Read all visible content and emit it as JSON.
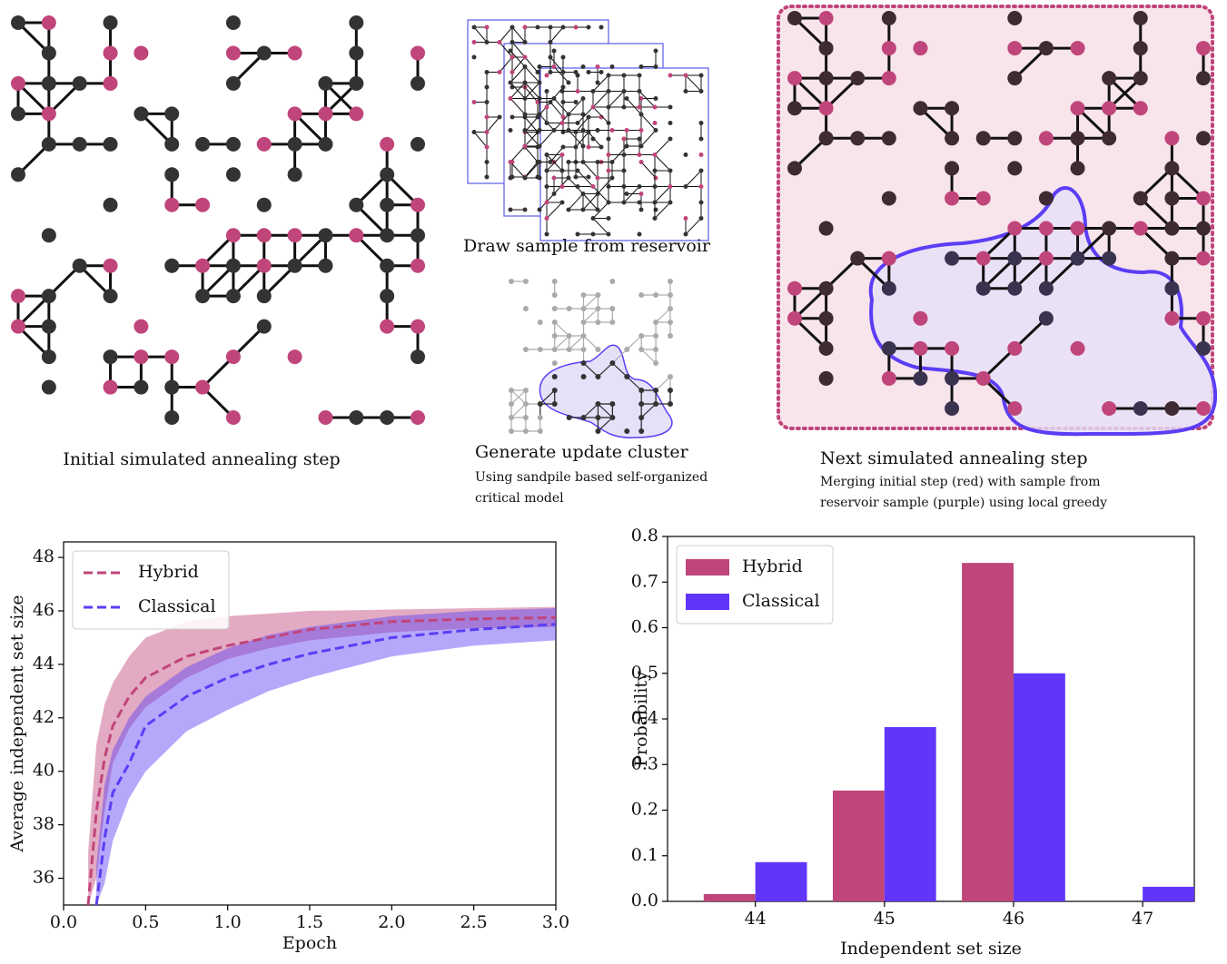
{
  "diagram": {
    "initial_caption": "Initial simulated annealing step",
    "reservoir_caption": "Draw sample from reservoir",
    "cluster_caption": "Generate update cluster",
    "cluster_note": [
      "Using sandpile based self-organized",
      "critical model"
    ],
    "next_caption": "Next simulated annealing step",
    "next_note": [
      "Merging initial step (red) with sample from",
      "reservoir sample (purple) using local greedy"
    ]
  },
  "chart_data": [
    {
      "type": "line",
      "xlabel": "Epoch",
      "ylabel": "Average independent set size",
      "x": [
        0.15,
        0.2,
        0.25,
        0.3,
        0.4,
        0.5,
        0.75,
        1.0,
        1.25,
        1.5,
        2.0,
        2.5,
        3.0
      ],
      "series": [
        {
          "name": "Hybrid",
          "color": "#c0457a",
          "values": [
            35,
            38.5,
            40.5,
            41.7,
            42.8,
            43.5,
            44.3,
            44.7,
            45.0,
            45.3,
            45.6,
            45.7,
            45.75
          ],
          "upper": [
            37,
            41,
            42.5,
            43.3,
            44.3,
            45,
            45.6,
            45.8,
            45.9,
            46,
            46.05,
            46.1,
            46.15
          ],
          "lower": [
            35,
            36,
            38.5,
            40.3,
            41.6,
            42.4,
            43.5,
            44.2,
            44.6,
            44.9,
            45.2,
            45.35,
            45.4
          ]
        },
        {
          "name": "Classical",
          "color": "#5b3df5",
          "values": [
            null,
            35,
            37.5,
            39.2,
            40.3,
            41.7,
            42.8,
            43.5,
            44.0,
            44.4,
            45.0,
            45.3,
            45.5
          ],
          "upper": [
            null,
            36.5,
            39.5,
            40.8,
            42,
            42.8,
            43.9,
            44.6,
            45.1,
            45.4,
            45.8,
            46.0,
            46.1
          ],
          "lower": [
            null,
            35,
            35.8,
            37.4,
            39,
            40,
            41.5,
            42.3,
            43,
            43.5,
            44.3,
            44.7,
            44.9
          ]
        }
      ],
      "xlim": [
        0,
        3
      ],
      "ylim": [
        35,
        48.58
      ],
      "xticks": [
        {
          "value": 0,
          "label": "0.0"
        },
        0.5,
        {
          "value": 1,
          "label": "1.0"
        },
        1.5,
        {
          "value": 2,
          "label": "2.0"
        },
        2.5,
        {
          "value": 3,
          "label": "3.0"
        }
      ],
      "yticks": [
        36,
        38,
        40,
        42,
        44,
        46,
        48
      ],
      "legend": "upper left",
      "line_style": "dashed"
    },
    {
      "type": "bar",
      "xlabel": "Independent set size",
      "ylabel": "Probability",
      "x": [
        44,
        45,
        46,
        47
      ],
      "series": [
        {
          "name": "Hybrid",
          "color": "#c0457a",
          "values": [
            0.016,
            0.243,
            0.742,
            0
          ]
        },
        {
          "name": "Classical",
          "color": "#6236fa",
          "values": [
            0.086,
            0.382,
            0.5,
            0.032
          ]
        }
      ],
      "xlim": [
        43.32,
        47.4
      ],
      "ylim": [
        0,
        0.8
      ],
      "xticks": [
        44,
        45,
        46,
        47
      ],
      "yticks": [
        {
          "value": 0,
          "label": "0.0"
        },
        0.1,
        0.2,
        0.3,
        0.4,
        0.5,
        0.6,
        0.7,
        0.8
      ],
      "legend": "upper left"
    }
  ]
}
